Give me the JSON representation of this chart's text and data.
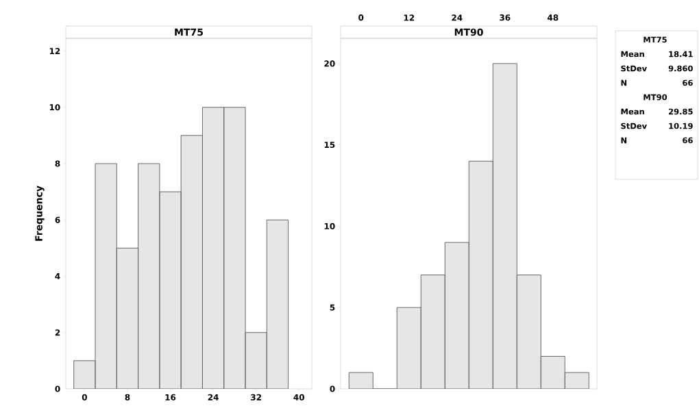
{
  "chart_data": [
    {
      "type": "histogram",
      "title": "MT75",
      "ylabel": "Frequency",
      "bins": [
        -2,
        2,
        6,
        10,
        14,
        18,
        22,
        26,
        30,
        34,
        38
      ],
      "values": [
        1,
        8,
        5,
        8,
        7,
        9,
        10,
        10,
        2,
        6
      ],
      "color": "#e6e6e6",
      "xlim": [
        -3.5,
        42.4
      ],
      "xticks": [
        0,
        8,
        16,
        24,
        32,
        40
      ],
      "ylim": [
        0,
        12.45
      ],
      "yticks": [
        0,
        2,
        4,
        6,
        8,
        10,
        12
      ],
      "annotations": [
        "MT75",
        "Mean",
        "18.41",
        "StDev",
        "9.860",
        "N",
        "66"
      ]
    },
    {
      "type": "histogram",
      "title": "MT90",
      "bins": [
        -3,
        3,
        9,
        15,
        21,
        27,
        33,
        39,
        45,
        51,
        57
      ],
      "values": [
        1,
        0,
        5,
        7,
        9,
        14,
        20,
        7,
        2,
        1
      ],
      "color": "#e6e6e6",
      "xlim": [
        -5.1,
        59.0
      ],
      "xticks": [
        0,
        12,
        24,
        36,
        48
      ],
      "ylim": [
        0,
        21.55
      ],
      "yticks": [
        0,
        5,
        10,
        15,
        20
      ],
      "annotations": [
        "MT90",
        "Mean",
        "29.85",
        "StDev",
        "10.19",
        "N",
        "66"
      ]
    }
  ]
}
